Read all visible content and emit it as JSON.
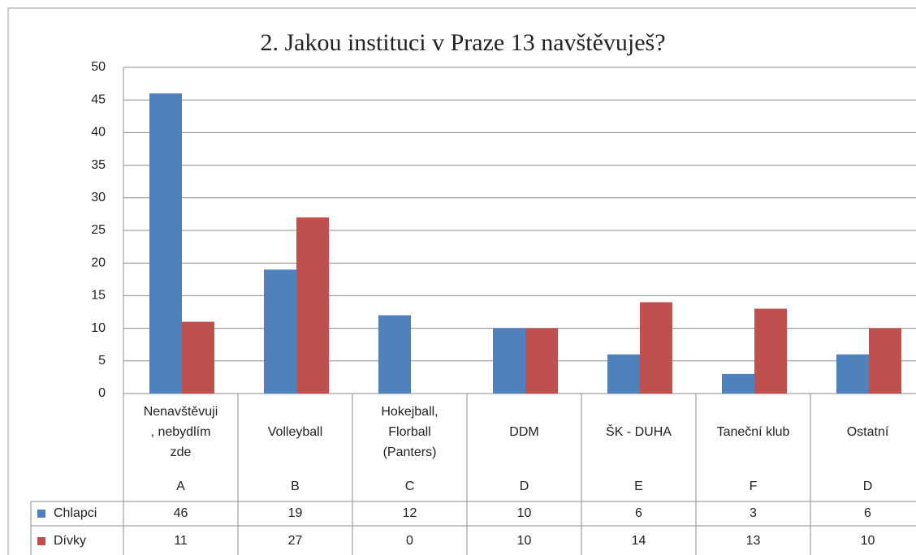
{
  "chart_data": {
    "type": "bar",
    "title": "2. Jakou instituci  v Praze 13 navštěvuješ?",
    "categories": [
      [
        "Nenavštěvuji",
        ", nebydlím",
        "zde"
      ],
      [
        "Volleyball"
      ],
      [
        "Hokejball,",
        "Florball",
        "(Panters)"
      ],
      [
        "DDM"
      ],
      [
        "ŠK - DUHA"
      ],
      [
        "Taneční klub"
      ],
      [
        "Ostatní"
      ]
    ],
    "category_codes": [
      "A",
      "B",
      "C",
      "D",
      "E",
      "F",
      "D"
    ],
    "series": [
      {
        "name": "Chlapci",
        "color": "#4f81bd",
        "values": [
          46,
          19,
          12,
          10,
          6,
          3,
          6
        ]
      },
      {
        "name": "Dívky",
        "color": "#c0504d",
        "values": [
          11,
          27,
          0,
          10,
          14,
          13,
          10
        ]
      }
    ],
    "ylim": [
      0,
      50
    ],
    "yticks": [
      0,
      5,
      10,
      15,
      20,
      25,
      30,
      35,
      40,
      45,
      50
    ],
    "grid": true
  }
}
